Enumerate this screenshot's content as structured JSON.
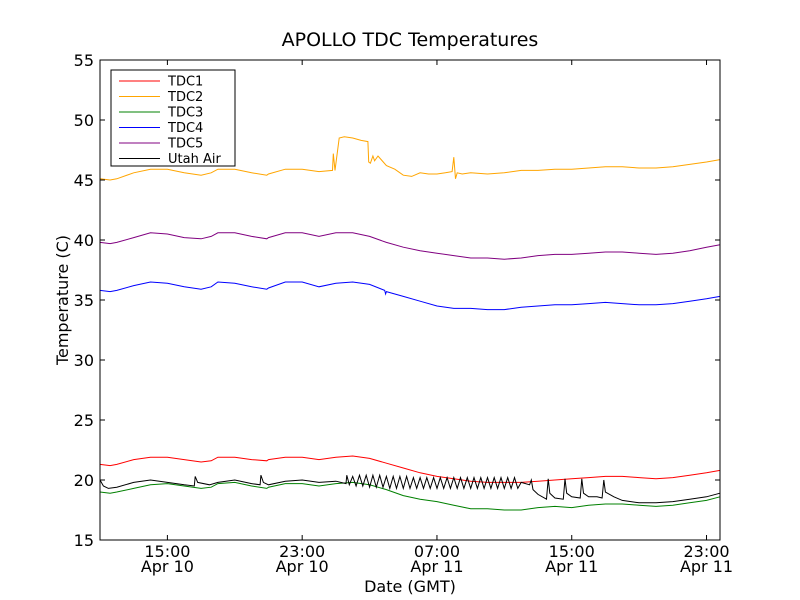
{
  "chart_data": {
    "type": "line",
    "title": "APOLLO TDC Temperatures",
    "xlabel": "Date (GMT)",
    "ylabel": "Temperature (C)",
    "xlim": [
      11.0,
      47.8
    ],
    "ylim": [
      15,
      55
    ],
    "x_unit": "hours since Apr 10 00:00 GMT",
    "y_ticks": [
      15,
      20,
      25,
      30,
      35,
      40,
      45,
      50,
      55
    ],
    "y_tick_labels": [
      "15",
      "20",
      "25",
      "30",
      "35",
      "40",
      "45",
      "50",
      "55"
    ],
    "x_ticks": [
      {
        "x": 15,
        "time": "15:00",
        "date": "Apr 10"
      },
      {
        "x": 23,
        "time": "23:00",
        "date": "Apr 10"
      },
      {
        "x": 31,
        "time": "07:00",
        "date": "Apr 11"
      },
      {
        "x": 39,
        "time": "15:00",
        "date": "Apr 11"
      },
      {
        "x": 47,
        "time": "23:00",
        "date": "Apr 11"
      }
    ],
    "legend_position": "top-left",
    "series": [
      {
        "name": "TDC1",
        "color": "#ff0000",
        "x": [
          11,
          11.6,
          12,
          13,
          14,
          15,
          16,
          17,
          17.6,
          18,
          19,
          20,
          20.9,
          21,
          22,
          23,
          24,
          25,
          26,
          27,
          28,
          29,
          30,
          31,
          32,
          33,
          34,
          35,
          36,
          37,
          38,
          39,
          40,
          41,
          42,
          43,
          44,
          45,
          46,
          47,
          47.8
        ],
        "values": [
          21.3,
          21.2,
          21.3,
          21.7,
          21.9,
          21.9,
          21.7,
          21.5,
          21.6,
          21.9,
          21.9,
          21.7,
          21.6,
          21.7,
          21.9,
          21.9,
          21.7,
          21.9,
          22.0,
          21.8,
          21.4,
          21.0,
          20.6,
          20.3,
          20.1,
          19.9,
          19.8,
          19.8,
          19.8,
          19.9,
          20.0,
          20.1,
          20.2,
          20.3,
          20.3,
          20.2,
          20.1,
          20.2,
          20.4,
          20.6,
          20.8
        ]
      },
      {
        "name": "TDC2",
        "color": "#ffa500",
        "x": [
          11,
          11.6,
          12,
          13,
          14,
          15,
          16,
          17,
          17.6,
          18,
          19,
          20,
          20.9,
          21,
          22,
          23,
          24,
          24.8,
          24.85,
          24.95,
          25.2,
          25.5,
          26,
          26.5,
          26.9,
          26.95,
          27.05,
          27.2,
          27.3,
          27.5,
          28,
          28.5,
          29,
          29.5,
          30,
          30.5,
          31,
          31.5,
          31.9,
          32.0,
          32.1,
          32.2,
          32.5,
          33,
          34,
          35,
          36,
          37,
          38,
          39,
          40,
          41,
          42,
          43,
          44,
          45,
          46,
          47,
          47.8
        ],
        "values": [
          45.1,
          45.0,
          45.1,
          45.6,
          45.9,
          45.9,
          45.6,
          45.4,
          45.6,
          45.9,
          45.9,
          45.6,
          45.4,
          45.5,
          45.9,
          45.9,
          45.7,
          45.8,
          47.2,
          45.8,
          48.5,
          48.6,
          48.5,
          48.3,
          48.2,
          46.5,
          46.4,
          47.0,
          46.6,
          47.0,
          46.2,
          45.9,
          45.4,
          45.3,
          45.6,
          45.5,
          45.5,
          45.6,
          45.7,
          46.9,
          45.1,
          45.6,
          45.5,
          45.6,
          45.5,
          45.6,
          45.8,
          45.8,
          45.9,
          45.9,
          46.0,
          46.1,
          46.1,
          46.0,
          46.0,
          46.1,
          46.3,
          46.5,
          46.7
        ]
      },
      {
        "name": "TDC3",
        "color": "#008000",
        "x": [
          11,
          11.6,
          12,
          13,
          14,
          15,
          16,
          17,
          17.6,
          18,
          19,
          20,
          20.9,
          21,
          22,
          23,
          24,
          25,
          26,
          27,
          28,
          29,
          30,
          31,
          32,
          33,
          34,
          35,
          36,
          37,
          38,
          39,
          40,
          41,
          42,
          43,
          44,
          45,
          46,
          47,
          47.8
        ],
        "values": [
          19.0,
          18.9,
          19.0,
          19.3,
          19.6,
          19.7,
          19.5,
          19.3,
          19.4,
          19.7,
          19.8,
          19.5,
          19.3,
          19.4,
          19.7,
          19.7,
          19.5,
          19.7,
          19.8,
          19.6,
          19.2,
          18.7,
          18.4,
          18.2,
          17.9,
          17.6,
          17.6,
          17.5,
          17.5,
          17.7,
          17.8,
          17.7,
          17.9,
          18.0,
          18.0,
          17.9,
          17.8,
          17.9,
          18.1,
          18.3,
          18.6
        ]
      },
      {
        "name": "TDC4",
        "color": "#0000ff",
        "x": [
          11,
          11.6,
          12,
          13,
          14,
          15,
          16,
          17,
          17.6,
          18,
          19,
          20,
          20.9,
          21,
          22,
          23,
          24,
          25,
          26,
          27,
          27.9,
          27.95,
          28.0,
          29,
          30,
          31,
          32,
          33,
          34,
          35,
          36,
          37,
          38,
          39,
          40,
          41,
          42,
          43,
          44,
          45,
          46,
          47,
          47.8
        ],
        "values": [
          35.8,
          35.7,
          35.8,
          36.2,
          36.5,
          36.4,
          36.1,
          35.9,
          36.1,
          36.5,
          36.4,
          36.1,
          35.9,
          36.0,
          36.5,
          36.5,
          36.1,
          36.4,
          36.5,
          36.3,
          35.8,
          35.5,
          35.7,
          35.3,
          34.9,
          34.5,
          34.3,
          34.3,
          34.2,
          34.2,
          34.4,
          34.5,
          34.6,
          34.6,
          34.7,
          34.8,
          34.7,
          34.6,
          34.6,
          34.7,
          34.9,
          35.1,
          35.3
        ]
      },
      {
        "name": "TDC5",
        "color": "#800080",
        "x": [
          11,
          11.6,
          12,
          13,
          14,
          15,
          16,
          17,
          17.6,
          18,
          19,
          20,
          20.9,
          21,
          22,
          23,
          24,
          25,
          26,
          27,
          28,
          29,
          30,
          31,
          32,
          33,
          34,
          35,
          36,
          37,
          38,
          39,
          40,
          41,
          42,
          43,
          44,
          45,
          46,
          47,
          47.8
        ],
        "values": [
          39.8,
          39.7,
          39.8,
          40.2,
          40.6,
          40.5,
          40.2,
          40.1,
          40.3,
          40.6,
          40.6,
          40.3,
          40.1,
          40.2,
          40.6,
          40.6,
          40.3,
          40.6,
          40.6,
          40.3,
          39.8,
          39.4,
          39.1,
          38.9,
          38.7,
          38.5,
          38.5,
          38.4,
          38.5,
          38.7,
          38.8,
          38.8,
          38.9,
          39.0,
          39.0,
          38.9,
          38.8,
          38.9,
          39.1,
          39.4,
          39.6
        ]
      },
      {
        "name": "Utah Air",
        "color": "#000000",
        "x": [
          11,
          11.2,
          11.5,
          12,
          13,
          14,
          15,
          16,
          16.6,
          16.65,
          16.8,
          17.5,
          18,
          19,
          20,
          20.5,
          20.55,
          20.7,
          21,
          22,
          23,
          24,
          25,
          25.6,
          25.65,
          25.8,
          26.0,
          26.2,
          26.4,
          26.6,
          26.8,
          27.0,
          27.2,
          27.4,
          27.6,
          27.8,
          28.0,
          28.2,
          28.4,
          28.6,
          28.8,
          29.0,
          29.2,
          29.4,
          29.6,
          29.8,
          30.0,
          30.2,
          30.4,
          30.6,
          30.8,
          31.0,
          31.2,
          31.4,
          31.6,
          31.8,
          32.0,
          32.2,
          32.4,
          32.6,
          32.8,
          33.0,
          33.2,
          33.4,
          33.6,
          33.8,
          34.0,
          34.2,
          34.4,
          34.6,
          34.8,
          35.0,
          35.2,
          35.4,
          35.6,
          35.8,
          36.0,
          36.5,
          36.6,
          36.7,
          37.0,
          37.5,
          37.6,
          37.7,
          38.0,
          38.5,
          38.6,
          38.7,
          39.0,
          39.5,
          39.6,
          39.7,
          40.0,
          40.5,
          40.8,
          40.9,
          41.0,
          41.5,
          42,
          43,
          44,
          45,
          46,
          47,
          47.8
        ],
        "values": [
          20.0,
          19.5,
          19.3,
          19.4,
          19.8,
          20.0,
          19.8,
          19.6,
          19.5,
          20.3,
          19.8,
          19.6,
          19.8,
          20.0,
          19.7,
          19.6,
          20.4,
          19.8,
          19.6,
          19.9,
          20.0,
          19.8,
          19.9,
          19.7,
          20.4,
          19.6,
          20.3,
          19.5,
          20.4,
          19.5,
          20.4,
          19.4,
          20.4,
          19.4,
          20.4,
          19.4,
          20.3,
          19.3,
          20.3,
          19.3,
          20.3,
          19.3,
          20.3,
          19.3,
          20.2,
          19.3,
          20.2,
          19.3,
          20.2,
          19.3,
          20.2,
          19.3,
          20.2,
          19.3,
          20.2,
          19.3,
          20.2,
          19.3,
          20.2,
          19.3,
          20.2,
          19.3,
          20.2,
          19.3,
          20.2,
          19.3,
          20.2,
          19.3,
          20.2,
          19.3,
          20.2,
          19.3,
          20.2,
          19.3,
          20.2,
          19.3,
          19.8,
          19.6,
          20.0,
          19.2,
          18.8,
          18.4,
          20.1,
          18.9,
          18.5,
          18.4,
          20.1,
          18.9,
          18.6,
          18.5,
          20.1,
          18.9,
          18.6,
          18.6,
          18.5,
          20.0,
          19.0,
          18.6,
          18.3,
          18.1,
          18.1,
          18.2,
          18.4,
          18.6,
          18.9
        ]
      }
    ]
  }
}
